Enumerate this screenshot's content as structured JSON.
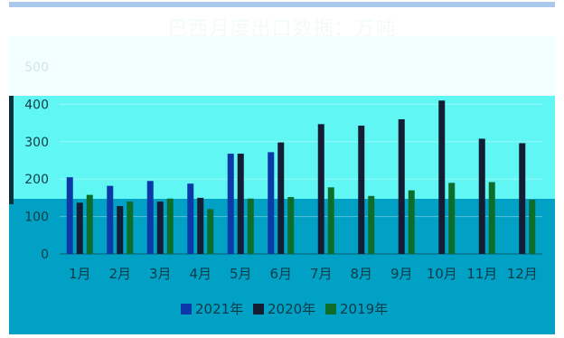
{
  "chart_data": {
    "type": "bar",
    "title": "巴西月度出口数据：万吨",
    "categories": [
      "1月",
      "2月",
      "3月",
      "4月",
      "5月",
      "6月",
      "7月",
      "8月",
      "9月",
      "10月",
      "11月",
      "12月"
    ],
    "series": [
      {
        "name": "2021年",
        "color": "#0b3aa8",
        "values": [
          205,
          182,
          195,
          188,
          268,
          272,
          null,
          null,
          null,
          null,
          null,
          null
        ]
      },
      {
        "name": "2020年",
        "color": "#141d33",
        "values": [
          137,
          128,
          140,
          150,
          268,
          298,
          347,
          343,
          360,
          410,
          308,
          296
        ]
      },
      {
        "name": "2019年",
        "color": "#0d6d2a",
        "values": [
          158,
          140,
          148,
          120,
          148,
          152,
          178,
          155,
          170,
          190,
          192,
          145
        ]
      }
    ],
    "yticks": [
      0,
      100,
      200,
      300,
      400,
      500
    ],
    "ylim": [
      0,
      500
    ],
    "legend_position": "bottom",
    "grid": true
  }
}
